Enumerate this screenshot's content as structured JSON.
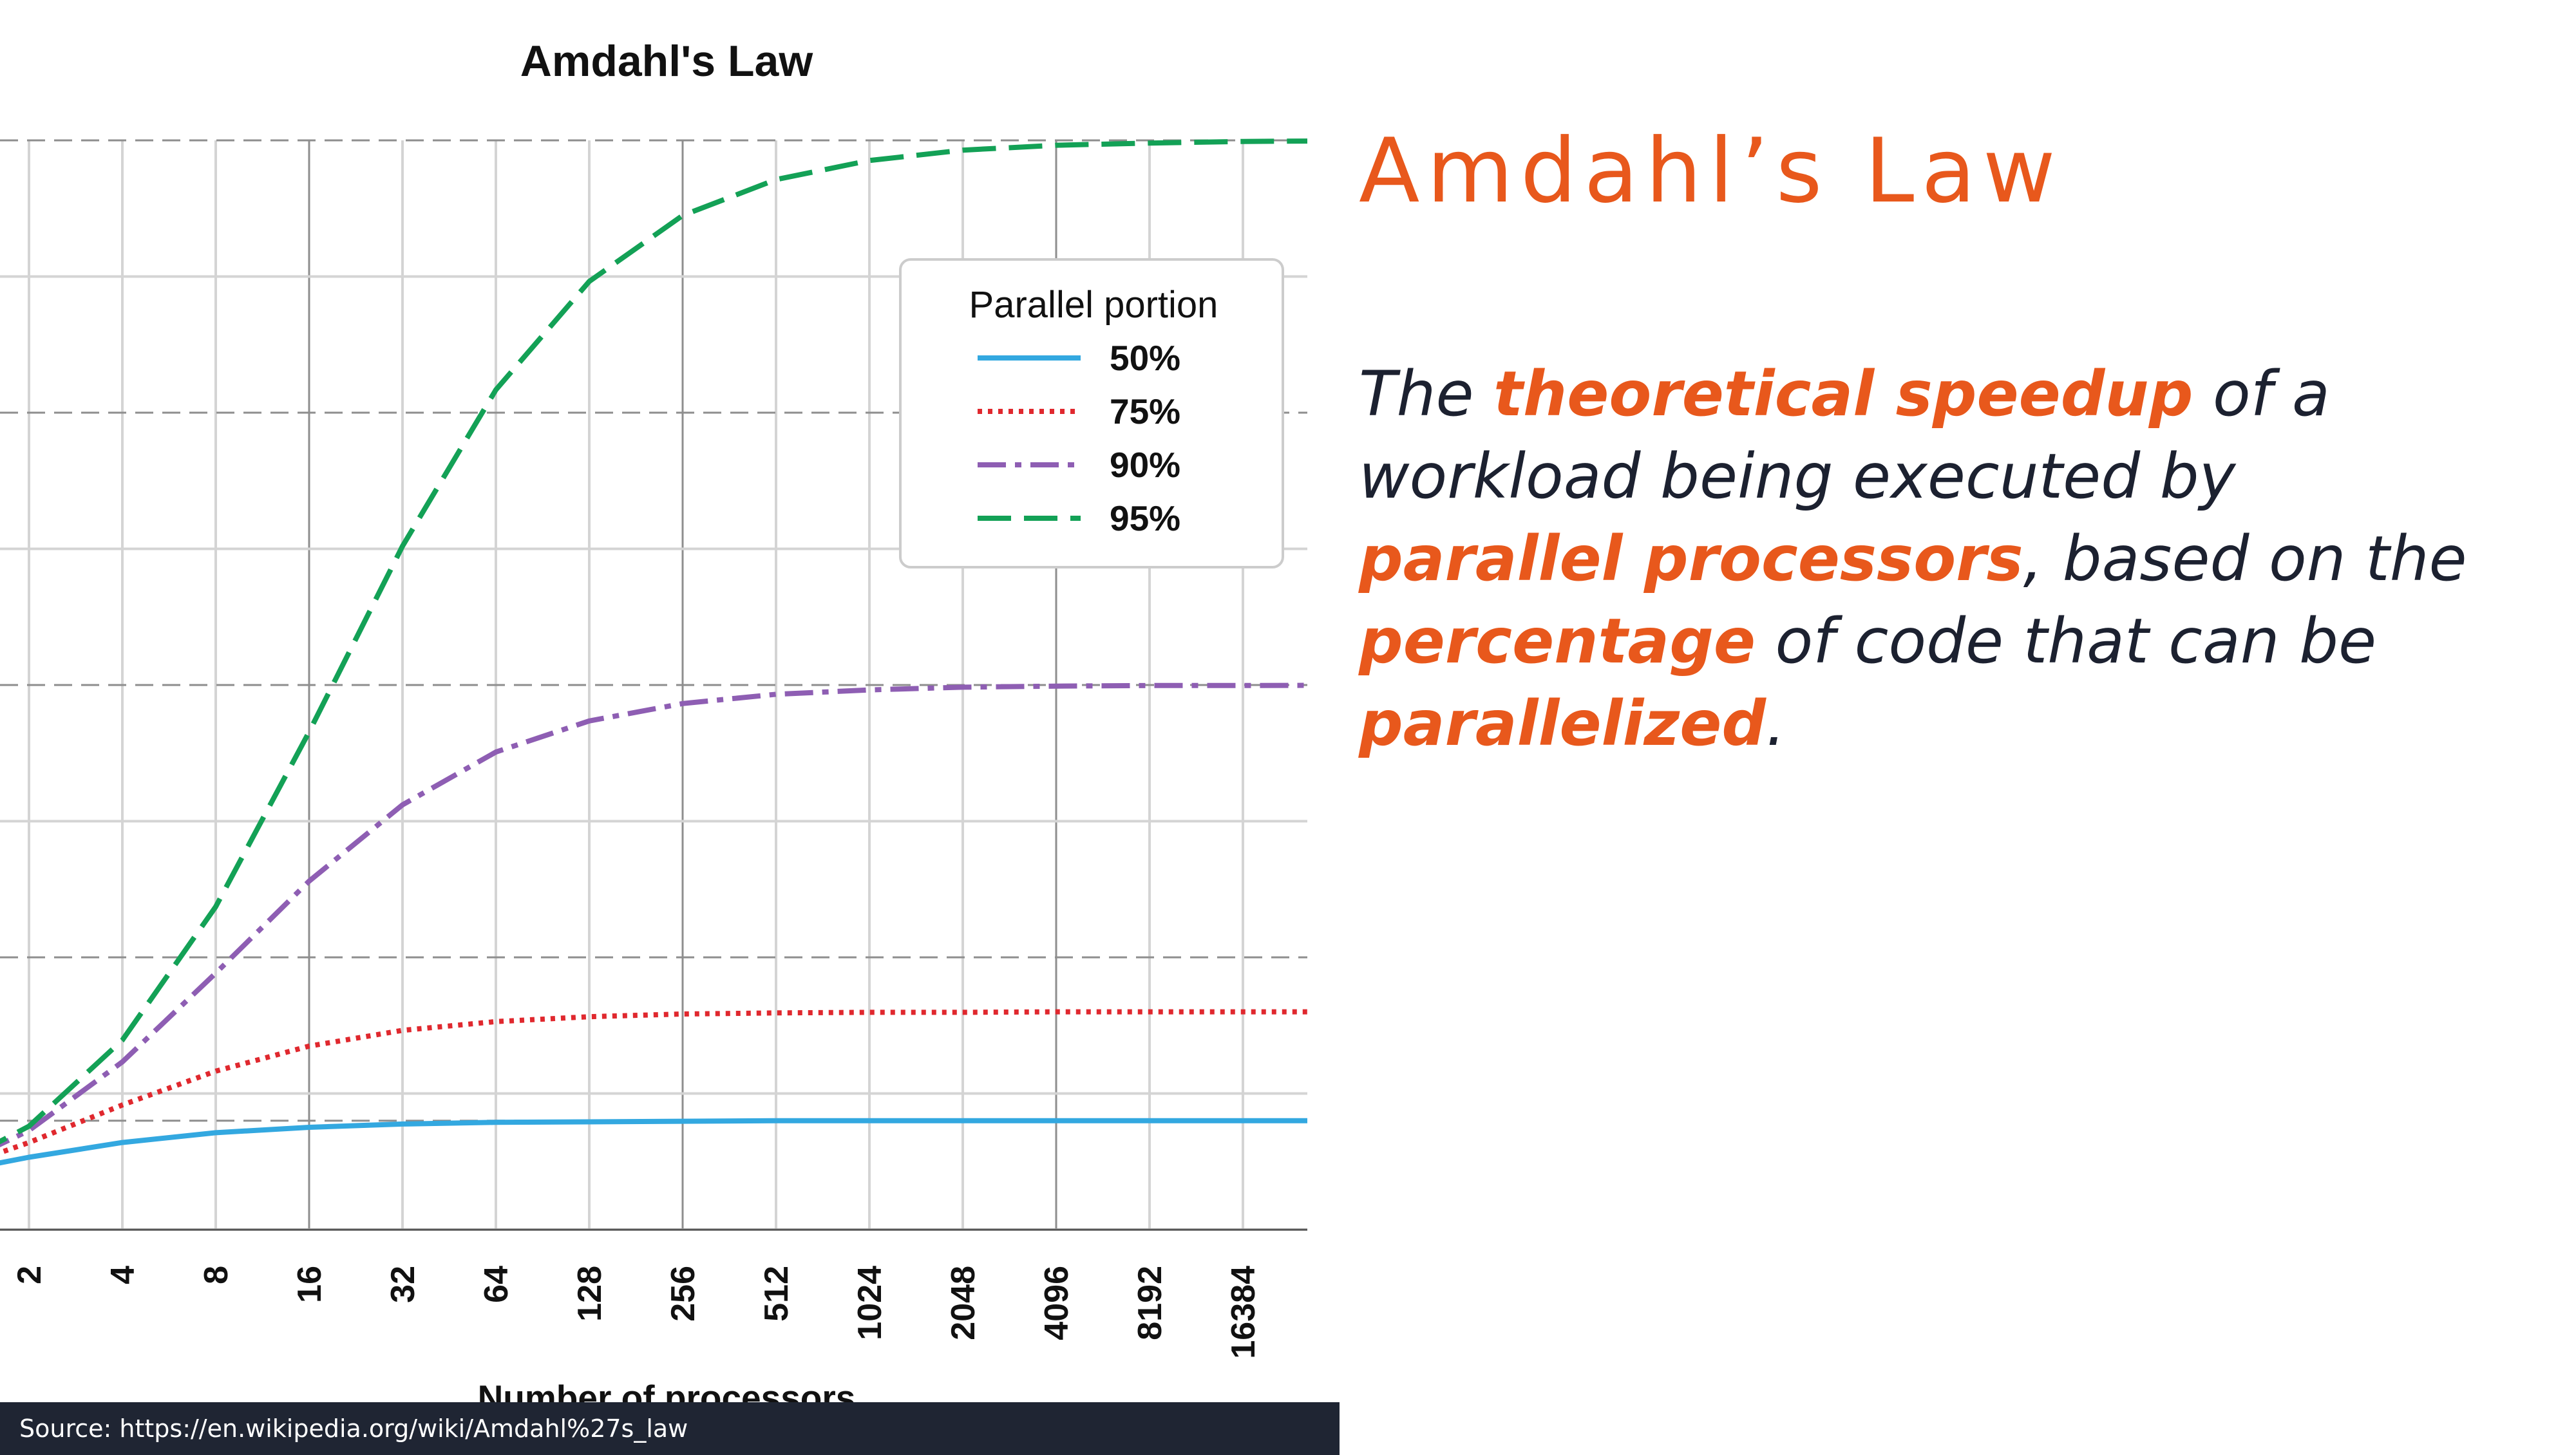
{
  "chart_data": {
    "type": "line",
    "title": "Amdahl's Law",
    "xlabel": "Number of processors",
    "ylabel": "",
    "x_scale": "log2",
    "x": [
      1,
      2,
      4,
      8,
      16,
      32,
      64,
      128,
      256,
      512,
      1024,
      2048,
      4096,
      8192,
      16384,
      65536
    ],
    "x_tick_labels": [
      "2",
      "4",
      "8",
      "16",
      "32",
      "64",
      "128",
      "256",
      "512",
      "1024",
      "2048",
      "4096",
      "8192",
      "16384"
    ],
    "ylim": [
      0,
      20
    ],
    "grid": true,
    "legend": {
      "title": "Parallel portion",
      "position": "upper-right"
    },
    "series": [
      {
        "name": "50%",
        "parallel_fraction": 0.5,
        "color": "#33a8e0",
        "style": "solid",
        "values": [
          1.0,
          1.33,
          1.6,
          1.78,
          1.88,
          1.94,
          1.97,
          1.98,
          1.99,
          2.0,
          2.0,
          2.0,
          2.0,
          2.0,
          2.0,
          2.0
        ]
      },
      {
        "name": "75%",
        "parallel_fraction": 0.75,
        "color": "#e0282e",
        "style": "dotted",
        "values": [
          1.0,
          1.6,
          2.29,
          2.91,
          3.37,
          3.66,
          3.82,
          3.91,
          3.96,
          3.98,
          3.99,
          3.99,
          4.0,
          4.0,
          4.0,
          4.0
        ]
      },
      {
        "name": "90%",
        "parallel_fraction": 0.9,
        "color": "#8e5eb3",
        "style": "dashdot",
        "values": [
          1.0,
          1.82,
          3.08,
          4.71,
          6.4,
          7.8,
          8.77,
          9.34,
          9.66,
          9.83,
          9.91,
          9.96,
          9.98,
          9.99,
          9.99,
          10.0
        ]
      },
      {
        "name": "95%",
        "parallel_fraction": 0.95,
        "color": "#13a156",
        "style": "dashed",
        "values": [
          1.0,
          1.9,
          3.48,
          5.93,
          9.14,
          12.55,
          15.42,
          17.41,
          18.62,
          19.28,
          19.63,
          19.82,
          19.91,
          19.95,
          19.98,
          20.0
        ]
      }
    ]
  },
  "slide": {
    "title": "Amdahl’s Law",
    "body": {
      "t1": "The ",
      "e1": "theoretical speedup",
      "t2": " of a workload being executed by ",
      "e2": "parallel processors",
      "t3": ", based on the ",
      "e3": "percentage",
      "t4": " of code that can be ",
      "e4": "parallelized",
      "t5": "."
    },
    "source": "Source: https://en.wikipedia.org/wiki/Amdahl%27s_law"
  }
}
